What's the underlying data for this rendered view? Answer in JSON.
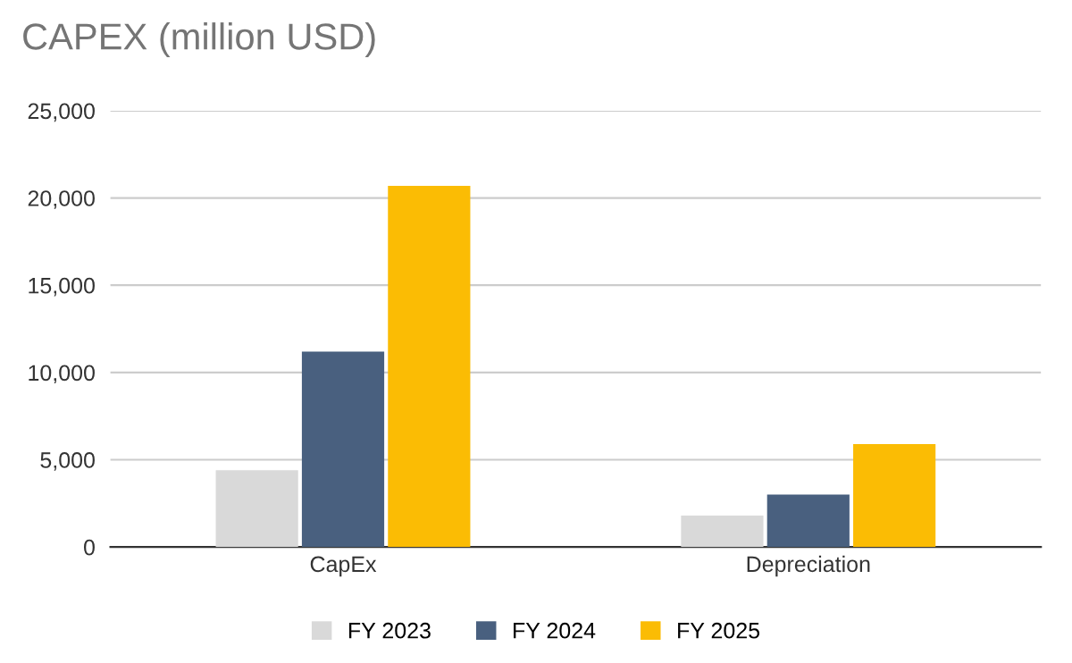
{
  "chart_data": {
    "type": "bar",
    "title": "CAPEX (million USD)",
    "categories": [
      "CapEx",
      "Depreciation"
    ],
    "series": [
      {
        "name": "FY 2023",
        "color": "#d9d9d9",
        "values": [
          4400,
          1800
        ]
      },
      {
        "name": "FY 2024",
        "color": "#49607f",
        "values": [
          11200,
          3000
        ]
      },
      {
        "name": "FY 2025",
        "color": "#fbbc04",
        "values": [
          20700,
          5900
        ]
      }
    ],
    "ylim": [
      0,
      25000
    ],
    "yticks": [
      {
        "value": 0,
        "label": "0"
      },
      {
        "value": 5000,
        "label": "5,000"
      },
      {
        "value": 10000,
        "label": "10,000"
      },
      {
        "value": 15000,
        "label": "15,000"
      },
      {
        "value": 20000,
        "label": "20,000"
      },
      {
        "value": 25000,
        "label": "25,000"
      }
    ],
    "grid": "y",
    "legend": "bottom"
  }
}
